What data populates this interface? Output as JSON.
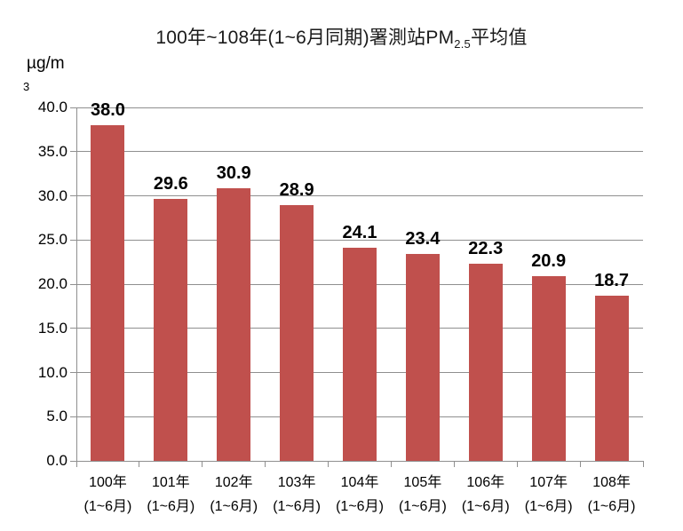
{
  "chart_data": {
    "type": "bar",
    "title": {
      "prefix": "100年~108年(1~6月同期)署測站PM",
      "subscript": "2.5",
      "suffix": "平均值"
    },
    "unit_label": {
      "line1": "µg/m",
      "line2": "3"
    },
    "categories": [
      {
        "line1": "100年",
        "line2": "(1~6月)"
      },
      {
        "line1": "101年",
        "line2": "(1~6月)"
      },
      {
        "line1": "102年",
        "line2": "(1~6月)"
      },
      {
        "line1": "103年",
        "line2": "(1~6月)"
      },
      {
        "line1": "104年",
        "line2": "(1~6月)"
      },
      {
        "line1": "105年",
        "line2": "(1~6月)"
      },
      {
        "line1": "106年",
        "line2": "(1~6月)"
      },
      {
        "line1": "107年",
        "line2": "(1~6月)"
      },
      {
        "line1": "108年",
        "line2": "(1~6月)"
      }
    ],
    "values": [
      38.0,
      29.6,
      30.9,
      28.9,
      24.1,
      23.4,
      22.3,
      20.9,
      18.7
    ],
    "value_labels": [
      "38.0",
      "29.6",
      "30.9",
      "28.9",
      "24.1",
      "23.4",
      "22.3",
      "20.9",
      "18.7"
    ],
    "ylim": [
      0,
      40
    ],
    "yticks": [
      "0.0",
      "5.0",
      "10.0",
      "15.0",
      "20.0",
      "25.0",
      "30.0",
      "35.0",
      "40.0"
    ],
    "grid": true,
    "legend": "none",
    "colors": {
      "bar": "#C0504D",
      "grid": "#8f8f8f",
      "axis": "#8f8f8f",
      "text": "#000000"
    }
  }
}
